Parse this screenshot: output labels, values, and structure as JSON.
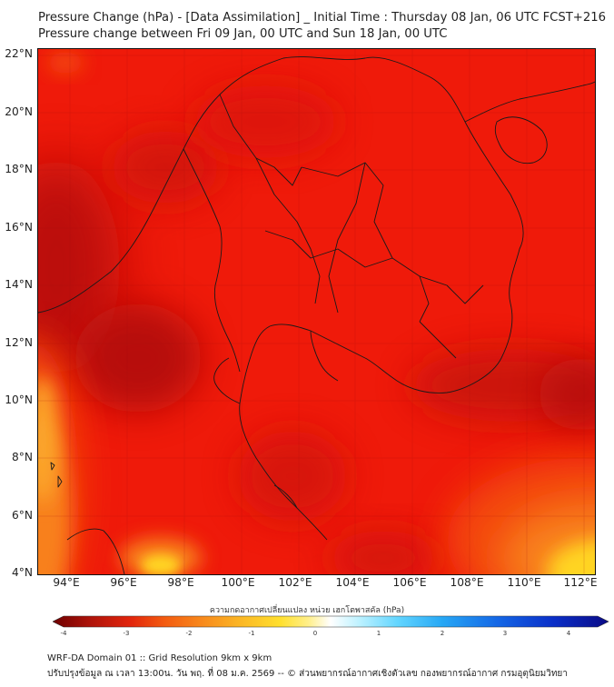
{
  "header": {
    "title_line1": "Pressure Change (hPa) - [Data Assimilation] _ Initial Time : Thursday 08 Jan, 06 UTC FCST+216",
    "title_line2": "Pressure change between Fri 09 Jan, 00 UTC and Sun 18 Jan, 00 UTC"
  },
  "map": {
    "y_ticks": [
      "22°N",
      "20°N",
      "18°N",
      "16°N",
      "14°N",
      "12°N",
      "10°N",
      "8°N",
      "6°N",
      "4°N"
    ],
    "x_ticks": [
      "94°E",
      "96°E",
      "98°E",
      "100°E",
      "102°E",
      "104°E",
      "106°E",
      "108°E",
      "110°E",
      "112°E"
    ],
    "lat_range": [
      4,
      22.2
    ],
    "lon_range": [
      93.0,
      112.5
    ],
    "fill_colors": {
      "deep_red": "#b50d08",
      "red": "#ef1a0a",
      "orange_red": "#f34a0c",
      "orange": "#f8801a",
      "yellow": "#ffd424"
    }
  },
  "colorbar": {
    "title": "ความกดอากาศเปลี่ยนแปลง หน่วย เฮกโตพาสคัล (hPa)",
    "ticks": [
      "-4",
      "-3",
      "-2",
      "-1",
      "0",
      "1",
      "2",
      "3",
      "4"
    ],
    "range": [
      -4,
      4
    ],
    "colors": [
      "#6e0000",
      "#b0140a",
      "#e2250c",
      "#f35a10",
      "#f88a1c",
      "#fbb825",
      "#ffe02e",
      "#ffef8a",
      "#ffffff",
      "#bff2ff",
      "#63d6ff",
      "#27a8f5",
      "#1467e6",
      "#0a2fc8",
      "#0a0a86"
    ]
  },
  "footer": {
    "line1": "WRF-DA Domain 01 :: Grid Resolution 9km x 9km",
    "line2": "ปรับปรุงข้อมูล ณ เวลา 13:00น. วัน พฤ. ที่ 08 ม.ค. 2569 -- © ส่วนพยากรณ์อากาศเชิงตัวเลข กองพยากรณ์อากาศ กรมอุตุนิยมวิทยา"
  }
}
